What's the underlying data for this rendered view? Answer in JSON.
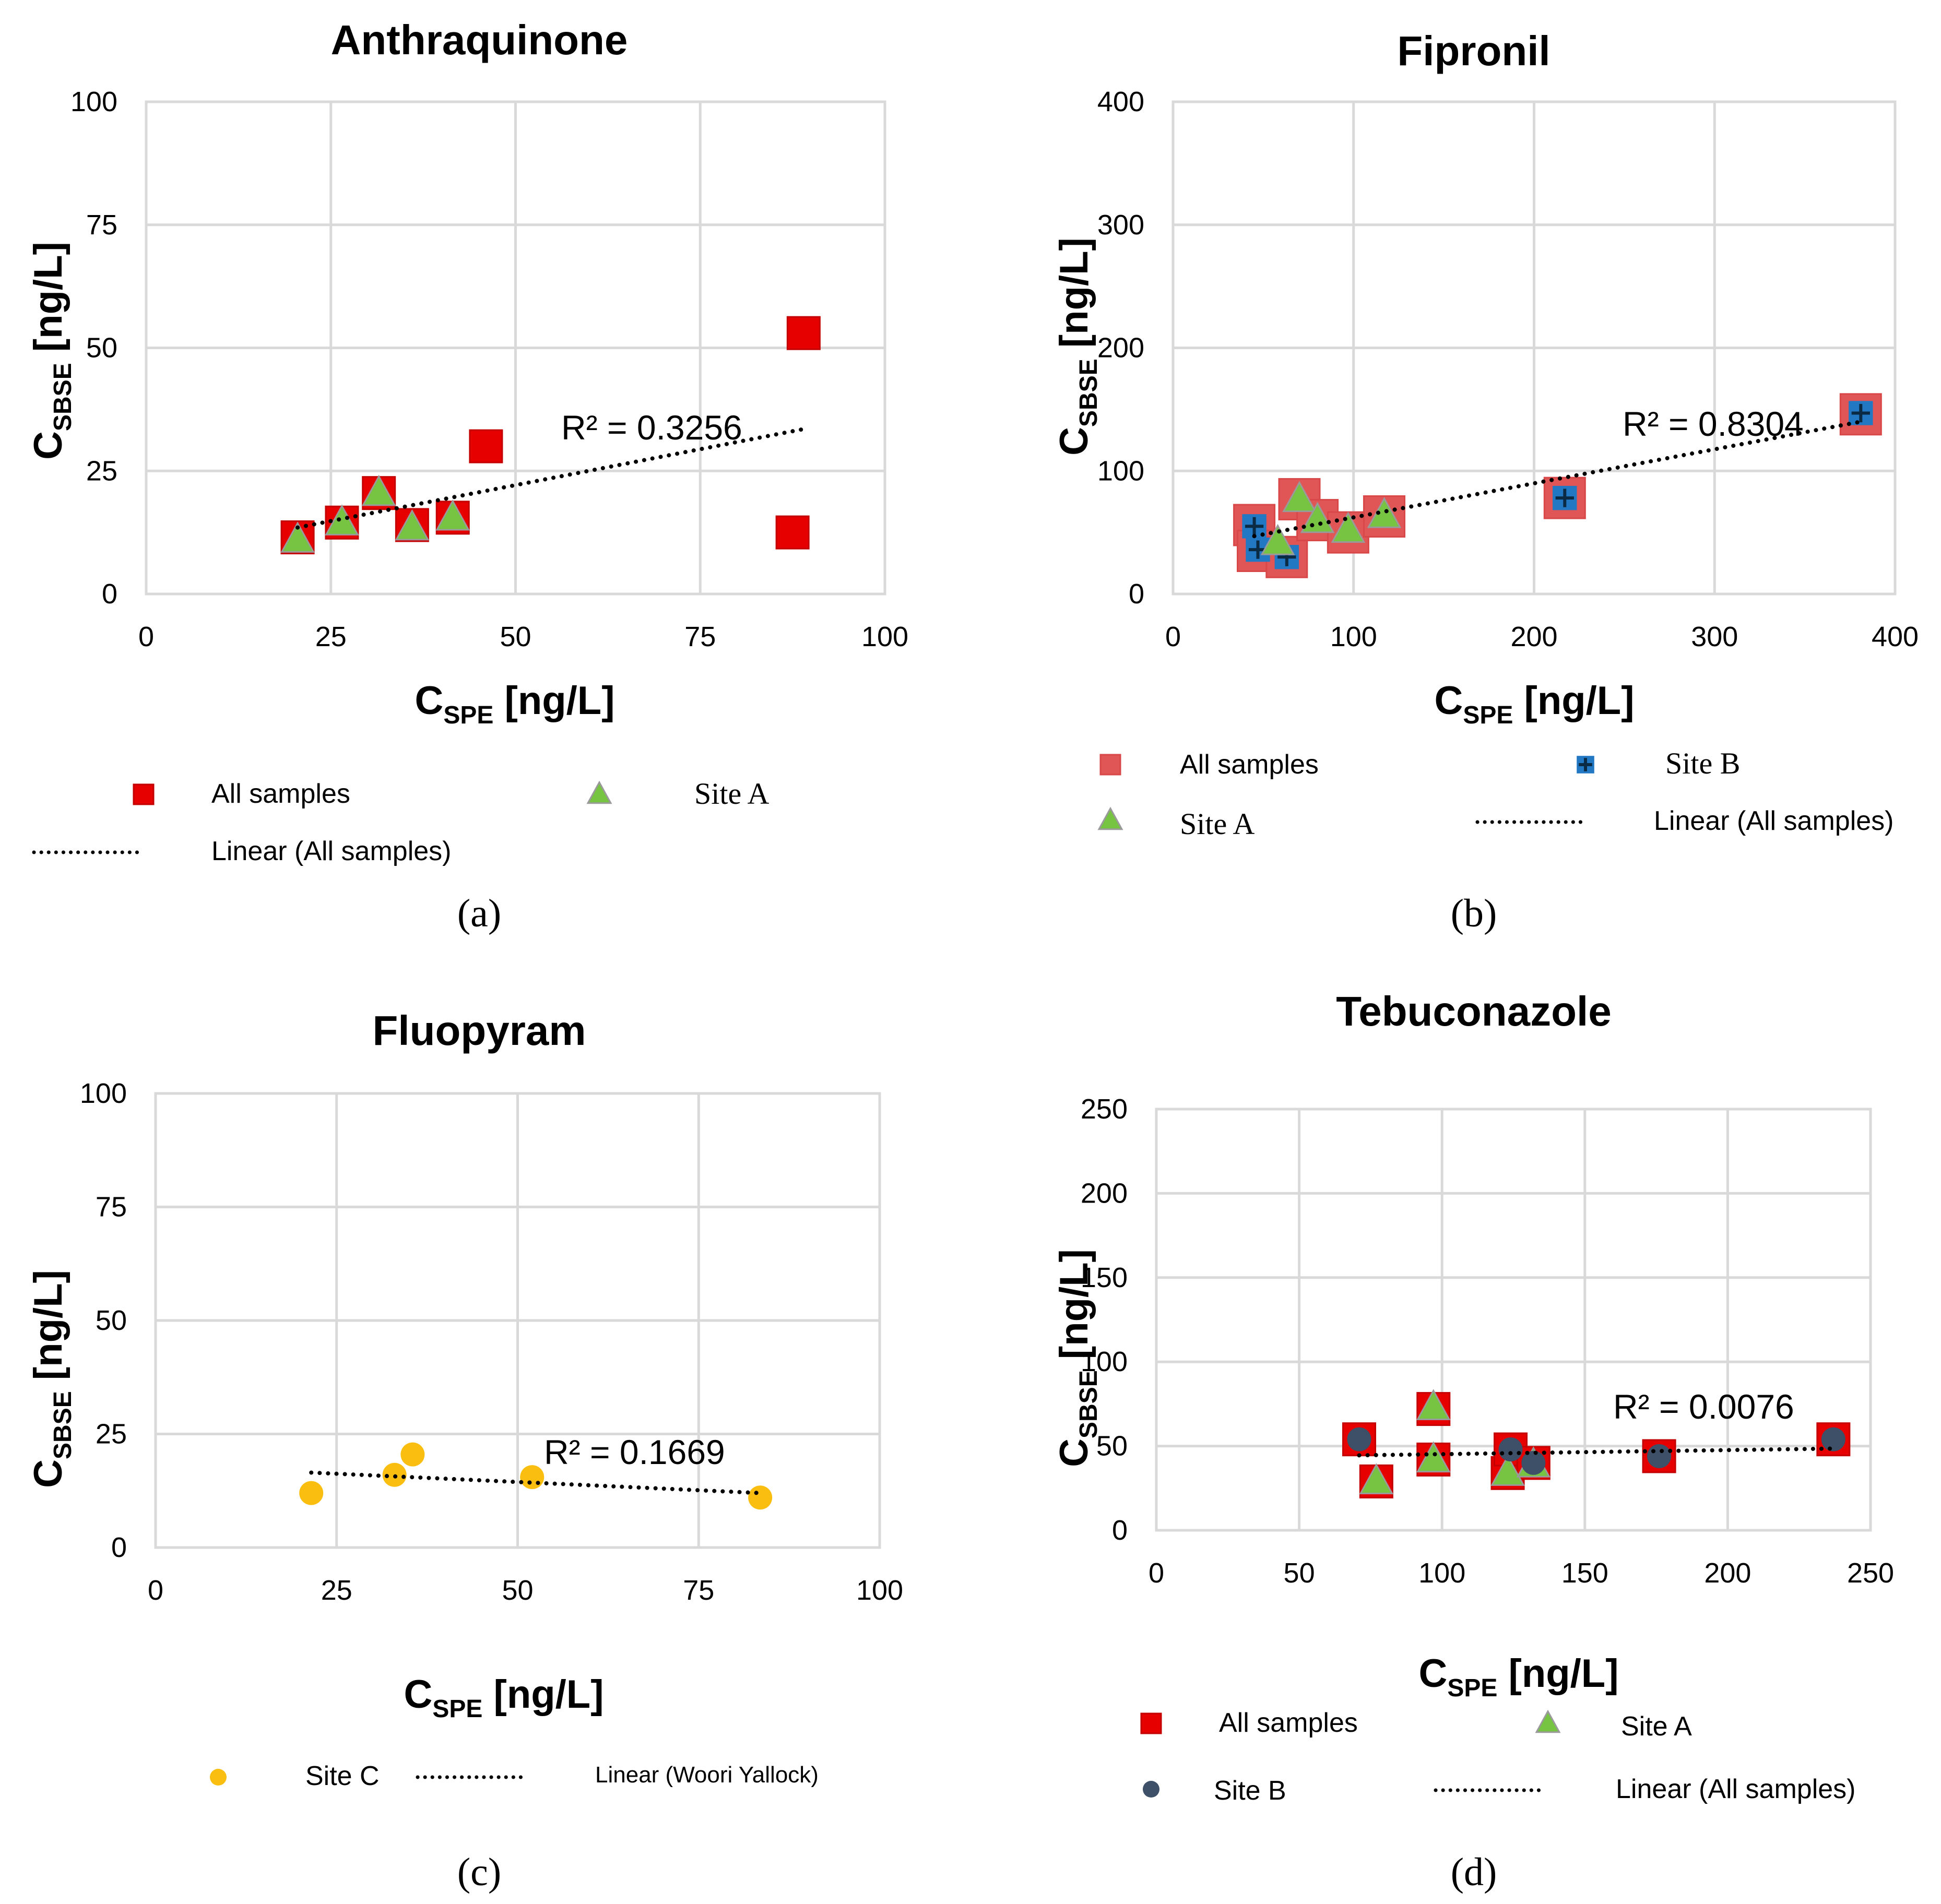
{
  "colors": {
    "red": "#e60000",
    "red_light": "#e05656",
    "green": "#76c442",
    "blue": "#2378c3",
    "gold": "#f9be10",
    "slate": "#3e5068",
    "grid": "#d9d9d9",
    "trend": "#000000"
  },
  "chart_data": [
    {
      "id": "a",
      "type": "scatter",
      "panel_label": "(a)",
      "title": "Anthraquinone",
      "xlabel_main": "C",
      "xlabel_sub": "SPE",
      "xlabel_unit": " [ng/L]",
      "ylabel_main": "C",
      "ylabel_sub": "SBSE",
      "ylabel_unit": " [ng/L]",
      "xlim": [
        0,
        100
      ],
      "ylim": [
        0,
        100
      ],
      "xticks": [
        0,
        25,
        50,
        75,
        100
      ],
      "yticks": [
        0,
        25,
        50,
        75,
        100
      ],
      "xtick_labels": [
        "0",
        "25",
        "50",
        "75",
        "100"
      ],
      "ytick_labels": [
        "0",
        "25",
        "50",
        "75",
        "100"
      ],
      "grid": true,
      "r2_label": "R² = 0.3256",
      "series": [
        {
          "name": "All samples",
          "marker": "square",
          "color": "#e60000",
          "points": [
            [
              20.5,
              11.5
            ],
            [
              26.5,
              14.5
            ],
            [
              31.5,
              20.5
            ],
            [
              36,
              14
            ],
            [
              41.5,
              15.5
            ],
            [
              46,
              30
            ],
            [
              87.5,
              12.5
            ],
            [
              89,
              53
            ]
          ]
        },
        {
          "name": "Site A",
          "marker": "triangle",
          "color": "#76c442",
          "points": [
            [
              20.5,
              11
            ],
            [
              26.5,
              14.5
            ],
            [
              31.5,
              20.5
            ],
            [
              36,
              13.5
            ],
            [
              41.5,
              15.5
            ]
          ]
        }
      ],
      "trendline": {
        "name": "Linear (All samples)",
        "from": [
          20.5,
          13.5
        ],
        "to": [
          89,
          33.5
        ]
      },
      "legend": [
        {
          "label": "All samples",
          "marker": "square",
          "color": "#e60000"
        },
        {
          "label": "Site A",
          "marker": "triangle",
          "color": "#76c442"
        },
        {
          "label": "Linear (All samples)",
          "marker": "dots",
          "color": "#000000"
        }
      ]
    },
    {
      "id": "b",
      "type": "scatter",
      "panel_label": "(b)",
      "title": "Fipronil",
      "xlabel_main": "C",
      "xlabel_sub": "SPE",
      "xlabel_unit": " [ng/L]",
      "ylabel_main": "C",
      "ylabel_sub": "SBSE",
      "ylabel_unit": " [ng/L]",
      "xlim": [
        0,
        400
      ],
      "ylim": [
        0,
        400
      ],
      "xticks": [
        0,
        100,
        200,
        300,
        400
      ],
      "yticks": [
        0,
        100,
        200,
        300,
        400
      ],
      "xtick_labels": [
        "0",
        "100",
        "200",
        "300",
        "400"
      ],
      "ytick_labels": [
        "0",
        "100",
        "200",
        "300",
        "400"
      ],
      "grid": true,
      "r2_label": "R² = 0.8304",
      "series": [
        {
          "name": "All samples",
          "marker": "square",
          "color": "#e05656",
          "points": [
            [
              45,
              56
            ],
            [
              47,
              35
            ],
            [
              63,
              30
            ],
            [
              70,
              77
            ],
            [
              80,
              60
            ],
            [
              97,
              50
            ],
            [
              117,
              63
            ],
            [
              217,
              78
            ],
            [
              381,
              146
            ]
          ]
        },
        {
          "name": "Site B",
          "marker": "plus",
          "color": "#2378c3",
          "points": [
            [
              45,
              55
            ],
            [
              47,
              36
            ],
            [
              63,
              30
            ],
            [
              217,
              78
            ],
            [
              381,
              147
            ]
          ]
        },
        {
          "name": "Site A",
          "marker": "triangle",
          "color": "#76c442",
          "points": [
            [
              58,
              42
            ],
            [
              70,
              77
            ],
            [
              80,
              60
            ],
            [
              97,
              52
            ],
            [
              117,
              64
            ]
          ]
        }
      ],
      "trendline": {
        "name": "Linear (All samples)",
        "from": [
          45,
          47
        ],
        "to": [
          381,
          140
        ]
      },
      "legend": [
        {
          "label": "All samples",
          "marker": "square",
          "color": "#e05656"
        },
        {
          "label": "Site B",
          "marker": "plus",
          "color": "#2378c3"
        },
        {
          "label": "Site A",
          "marker": "triangle",
          "color": "#76c442"
        },
        {
          "label": "Linear (All samples)",
          "marker": "dots",
          "color": "#000000"
        }
      ]
    },
    {
      "id": "c",
      "type": "scatter",
      "panel_label": "(c)",
      "title": "Fluopyram",
      "xlabel_main": "C",
      "xlabel_sub": "SPE",
      "xlabel_unit": " [ng/L]",
      "ylabel_main": "C",
      "ylabel_sub": "SBSE",
      "ylabel_unit": " [ng/L]",
      "xlim": [
        0,
        100
      ],
      "ylim": [
        0,
        100
      ],
      "xticks": [
        0,
        25,
        50,
        75,
        100
      ],
      "yticks": [
        0,
        25,
        50,
        75,
        100
      ],
      "xtick_labels": [
        "0",
        "25",
        "50",
        "75",
        "100"
      ],
      "ytick_labels": [
        "0",
        "25",
        "50",
        "75",
        "100"
      ],
      "grid": true,
      "r2_label": "R² = 0.1669",
      "series": [
        {
          "name": "Site C",
          "marker": "circle",
          "color": "#f9be10",
          "points": [
            [
              21.5,
              12
            ],
            [
              33,
              16
            ],
            [
              35.5,
              20.5
            ],
            [
              52,
              15.5
            ],
            [
              83.5,
              11
            ]
          ]
        }
      ],
      "trendline": {
        "name": "Linear (Woori Yallock)",
        "from": [
          21.5,
          16.5
        ],
        "to": [
          83.5,
          12
        ]
      },
      "legend": [
        {
          "label": "Site C",
          "marker": "circle",
          "color": "#f9be10"
        },
        {
          "label": "Linear (Woori Yallock)",
          "marker": "dots",
          "color": "#000000"
        }
      ]
    },
    {
      "id": "d",
      "type": "scatter",
      "panel_label": "(d)",
      "title": "Tebuconazole",
      "xlabel_main": "C",
      "xlabel_sub": "SPE",
      "xlabel_unit": " [ng/L]",
      "ylabel_main": "C",
      "ylabel_sub": "SBSE",
      "ylabel_unit": " [ng/L]",
      "xlim": [
        0,
        250
      ],
      "ylim": [
        0,
        250
      ],
      "xticks": [
        0,
        50,
        100,
        150,
        200,
        250
      ],
      "yticks": [
        0,
        50,
        100,
        150,
        200,
        250
      ],
      "xtick_labels": [
        "0",
        "50",
        "100",
        "150",
        "200",
        "250"
      ],
      "ytick_labels": [
        "0",
        "50",
        "100",
        "150",
        "200",
        "250"
      ],
      "grid": true,
      "r2_label": "R² = 0.0076",
      "series": [
        {
          "name": "All samples",
          "marker": "square",
          "color": "#e60000",
          "points": [
            [
              71,
              54
            ],
            [
              77,
              29
            ],
            [
              97,
              72
            ],
            [
              97,
              42
            ],
            [
              123,
              34
            ],
            [
              124,
              48
            ],
            [
              132,
              40
            ],
            [
              176,
              44
            ],
            [
              237,
              54
            ]
          ]
        },
        {
          "name": "Site A",
          "marker": "triangle",
          "color": "#76c442",
          "points": [
            [
              77,
              29
            ],
            [
              97,
              73
            ],
            [
              97,
              42
            ],
            [
              123,
              34
            ],
            [
              132,
              39
            ]
          ]
        },
        {
          "name": "Site B",
          "marker": "circle",
          "color": "#3e5068",
          "points": [
            [
              71,
              54
            ],
            [
              124,
              48
            ],
            [
              132,
              40
            ],
            [
              176,
              44
            ],
            [
              237,
              54
            ]
          ]
        }
      ],
      "trendline": {
        "name": "Linear (All samples)",
        "from": [
          71,
          44.5
        ],
        "to": [
          237,
          48.5
        ]
      },
      "legend": [
        {
          "label": "All samples",
          "marker": "square",
          "color": "#e60000"
        },
        {
          "label": "Site A",
          "marker": "triangle",
          "color": "#76c442"
        },
        {
          "label": "Site B",
          "marker": "circle",
          "color": "#3e5068"
        },
        {
          "label": "Linear (All samples)",
          "marker": "dots",
          "color": "#000000"
        }
      ]
    }
  ]
}
